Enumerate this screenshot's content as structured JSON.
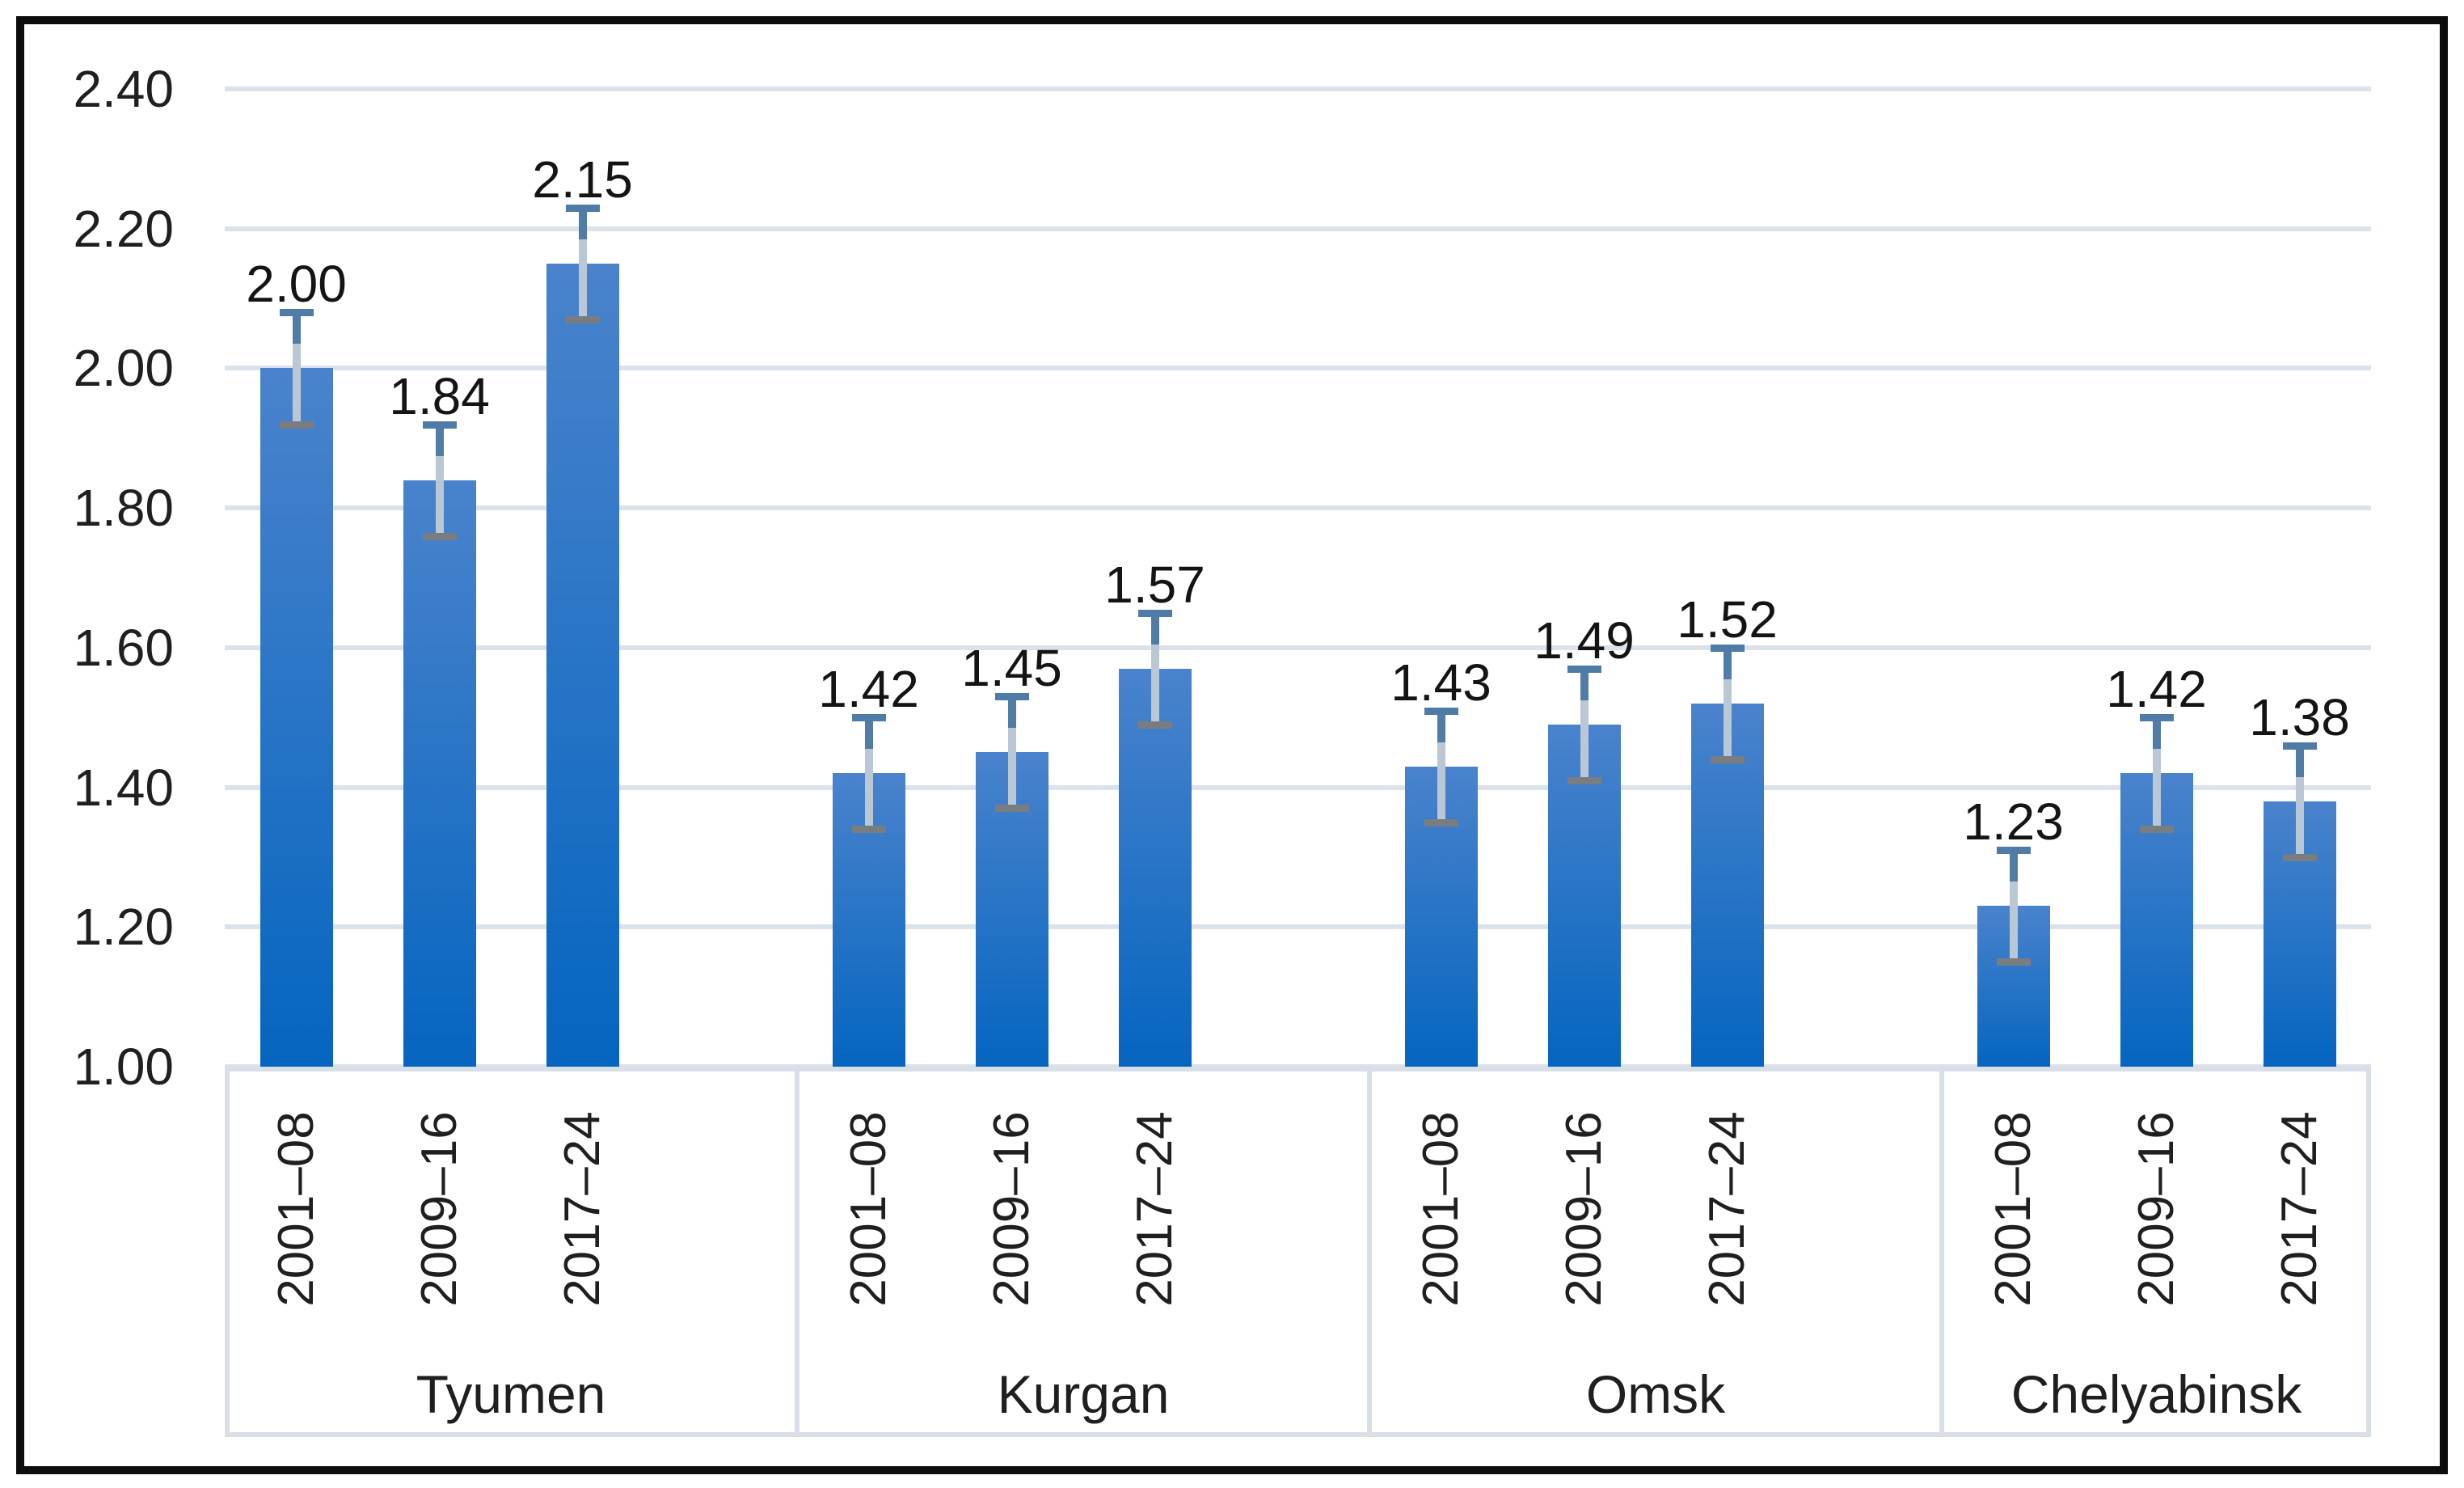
{
  "chart_data": {
    "type": "bar",
    "title": "",
    "xlabel": "",
    "ylabel": "",
    "legend": "none",
    "grid": true,
    "ylim": [
      1.0,
      2.4
    ],
    "ytick_step": 0.2,
    "ytick_labels": [
      "2.40",
      "2.20",
      "2.00",
      "1.80",
      "1.60",
      "1.40",
      "1.20",
      "1.00"
    ],
    "period_labels": [
      "2001–08",
      "2009–16",
      "2017–24"
    ],
    "error_bar": 0.08,
    "groups": [
      {
        "name": "Tyumen",
        "values": [
          2.0,
          1.84,
          2.15
        ],
        "labels": [
          "2.00",
          "1.84",
          "2.15"
        ]
      },
      {
        "name": "Kurgan",
        "values": [
          1.42,
          1.45,
          1.57
        ],
        "labels": [
          "1.42",
          "1.45",
          "1.57"
        ]
      },
      {
        "name": "Omsk",
        "values": [
          1.43,
          1.49,
          1.52
        ],
        "labels": [
          "1.43",
          "1.49",
          "1.52"
        ]
      },
      {
        "name": "Chelyabinsk",
        "values": [
          1.23,
          1.42,
          1.38
        ],
        "labels": [
          "1.23",
          "1.42",
          "1.38"
        ]
      }
    ]
  },
  "colors": {
    "background": "#ffffff",
    "frame_border": "#0d0d0d",
    "gridline": "#dce2ea",
    "axis_box_border": "#d9dfe6",
    "bar_gradient_top": "#4a83cc",
    "bar_gradient_bottom": "#0565c0",
    "error_line": "#bac7d5",
    "error_line_dark": "#507ca5",
    "error_cap_top": "#4f7ba7",
    "error_cap_bottom": "#7a7d80",
    "text": "#1f1f1f"
  }
}
